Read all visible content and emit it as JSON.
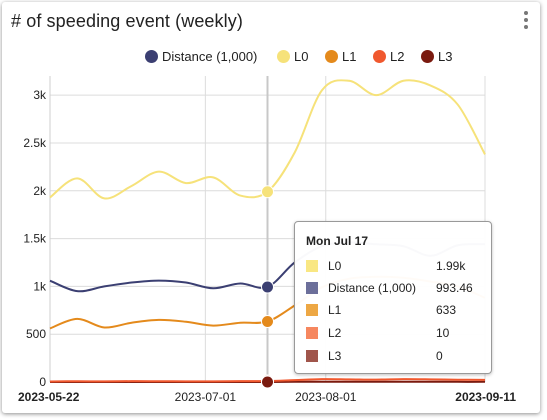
{
  "widget": {
    "title": "# of speeding event (weekly)",
    "menu_icon": "kebab-menu-icon"
  },
  "chart_data": {
    "type": "line",
    "title": "# of speeding event (weekly)",
    "xlabel": "",
    "ylabel": "",
    "x_ticks": [
      "2023-05-22",
      "2023-07-01",
      "2023-08-01",
      "2023-09-11"
    ],
    "x_range": [
      "2023-05-22",
      "2023-09-11"
    ],
    "y_ticks": [
      "0",
      "500",
      "1k",
      "1.5k",
      "2k",
      "2.5k",
      "3k"
    ],
    "ylim": [
      0,
      3200
    ],
    "grid": true,
    "legend_position": "top",
    "cursor_date": "2023-07-17",
    "series": [
      {
        "name": "Distance (1,000)",
        "color": "#3b3f72",
        "x": [
          "2023-05-22",
          "2023-05-29",
          "2023-06-05",
          "2023-06-12",
          "2023-06-19",
          "2023-06-26",
          "2023-07-03",
          "2023-07-10",
          "2023-07-17",
          "2023-07-24",
          "2023-07-31",
          "2023-08-07",
          "2023-08-14",
          "2023-08-21",
          "2023-08-28",
          "2023-09-04",
          "2023-09-11"
        ],
        "y": [
          1060,
          950,
          1000,
          1040,
          1060,
          1040,
          980,
          1030,
          993.46,
          1250,
          1420,
          1460,
          1440,
          1420,
          1320,
          1430,
          1440
        ]
      },
      {
        "name": "L0",
        "color": "#f6e27a",
        "x": [
          "2023-05-22",
          "2023-05-29",
          "2023-06-05",
          "2023-06-12",
          "2023-06-19",
          "2023-06-26",
          "2023-07-03",
          "2023-07-10",
          "2023-07-17",
          "2023-07-24",
          "2023-07-31",
          "2023-08-07",
          "2023-08-14",
          "2023-08-21",
          "2023-08-28",
          "2023-09-04",
          "2023-09-11"
        ],
        "y": [
          1930,
          2130,
          1920,
          2050,
          2200,
          2080,
          2140,
          1950,
          1990,
          2400,
          3050,
          3150,
          3000,
          3150,
          3100,
          2900,
          2380
        ]
      },
      {
        "name": "L1",
        "color": "#e48a1c",
        "x": [
          "2023-05-22",
          "2023-05-29",
          "2023-06-05",
          "2023-06-12",
          "2023-06-19",
          "2023-06-26",
          "2023-07-03",
          "2023-07-10",
          "2023-07-17",
          "2023-07-24",
          "2023-07-31",
          "2023-08-07",
          "2023-08-14",
          "2023-08-21",
          "2023-08-28",
          "2023-09-04",
          "2023-09-11"
        ],
        "y": [
          560,
          660,
          570,
          620,
          650,
          630,
          590,
          620,
          633,
          800,
          990,
          1080,
          1100,
          1090,
          1050,
          1000,
          880
        ]
      },
      {
        "name": "L2",
        "color": "#f0582e",
        "x": [
          "2023-05-22",
          "2023-05-29",
          "2023-06-05",
          "2023-06-12",
          "2023-06-19",
          "2023-06-26",
          "2023-07-03",
          "2023-07-10",
          "2023-07-17",
          "2023-07-24",
          "2023-07-31",
          "2023-08-07",
          "2023-08-14",
          "2023-08-21",
          "2023-08-28",
          "2023-09-04",
          "2023-09-11"
        ],
        "y": [
          5,
          8,
          6,
          9,
          8,
          7,
          6,
          9,
          10,
          20,
          30,
          28,
          25,
          30,
          28,
          24,
          22
        ]
      },
      {
        "name": "L3",
        "color": "#7a1a0f",
        "x": [
          "2023-05-22",
          "2023-05-29",
          "2023-06-05",
          "2023-06-12",
          "2023-06-19",
          "2023-06-26",
          "2023-07-03",
          "2023-07-10",
          "2023-07-17",
          "2023-07-24",
          "2023-07-31",
          "2023-08-07",
          "2023-08-14",
          "2023-08-21",
          "2023-08-28",
          "2023-09-04",
          "2023-09-11"
        ],
        "y": [
          0,
          0,
          0,
          0,
          0,
          0,
          0,
          0,
          0,
          2,
          3,
          3,
          2,
          3,
          3,
          2,
          2
        ]
      }
    ]
  },
  "legend": [
    {
      "label": "Distance (1,000)",
      "color": "#3b3f72"
    },
    {
      "label": "L0",
      "color": "#f6e27a"
    },
    {
      "label": "L1",
      "color": "#e48a1c"
    },
    {
      "label": "L2",
      "color": "#f0582e"
    },
    {
      "label": "L3",
      "color": "#7a1a0f"
    }
  ],
  "tooltip": {
    "date": "Mon Jul 17",
    "rows": [
      {
        "name": "L0",
        "value": "1.99k",
        "color": "#f9e783"
      },
      {
        "name": "Distance (1,000)",
        "value": "993.46",
        "color": "#6c6f9a"
      },
      {
        "name": "L1",
        "value": "633",
        "color": "#eda744"
      },
      {
        "name": "L2",
        "value": "10",
        "color": "#f6875f"
      },
      {
        "name": "L3",
        "value": "0",
        "color": "#a0554b"
      }
    ]
  }
}
